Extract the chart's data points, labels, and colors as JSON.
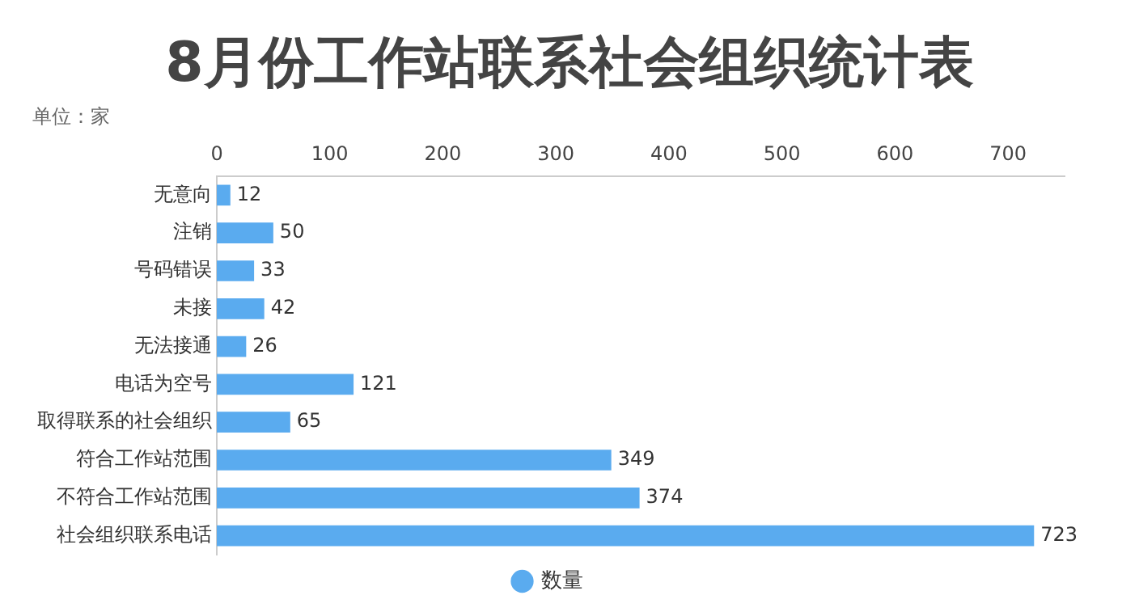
{
  "chart_data": {
    "type": "bar",
    "orientation": "horizontal",
    "title": "8月份工作站联系社会组织统计表",
    "subtitle": "单位：家",
    "categories": [
      "无意向",
      "注销",
      "号码错误",
      "未接",
      "无法接通",
      "电话为空号",
      "取得联系的社会组织",
      "符合工作站范围",
      "不符合工作站范围",
      "社会组织联系电话"
    ],
    "series": [
      {
        "name": "数量",
        "color": "#5aabef",
        "values": [
          12,
          50,
          33,
          42,
          26,
          121,
          65,
          349,
          374,
          723
        ]
      }
    ],
    "xlim": [
      0,
      750
    ],
    "xticks": [
      0,
      100,
      200,
      300,
      400,
      500,
      600,
      700
    ],
    "grid": false,
    "legend": "bottom",
    "data_labels": true
  }
}
